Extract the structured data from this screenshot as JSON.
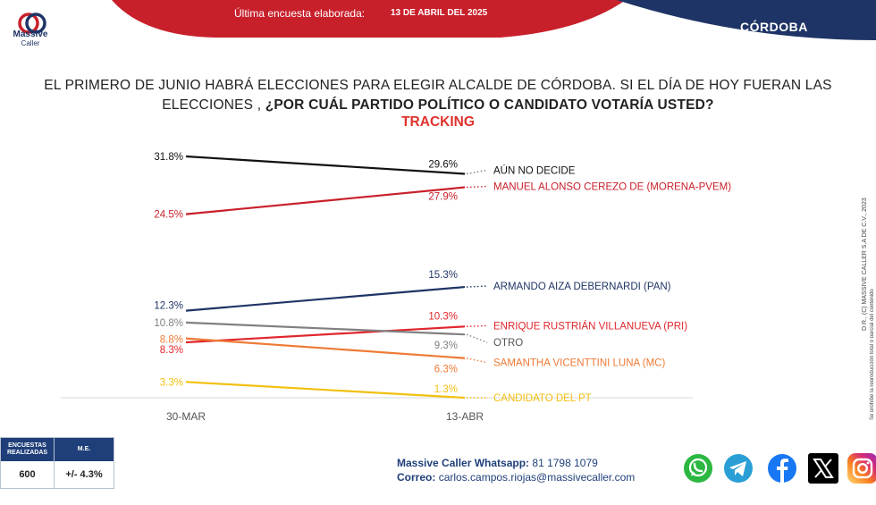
{
  "header": {
    "survey_label": "Última encuesta elaborada:",
    "survey_date": "13 DE ABRIL DEL 2025",
    "region": "CÓRDOBA",
    "logo_line1": "Massive",
    "logo_line2": "Caller",
    "colors": {
      "red": "#d21f2b",
      "navy": "#1f3466"
    }
  },
  "question": {
    "line1": "EL PRIMERO DE JUNIO HABRÁ ELECCIONES PARA ELEGIR ALCALDE DE CÓRDOBA.  SI EL DÍA DE HOY FUERAN LAS",
    "line2_plain": "ELECCIONES , ",
    "line2_bold": "¿POR CUÁL PARTIDO POLÍTICO O CANDIDATO VOTARÍA USTED?",
    "subtitle": "TRACKING"
  },
  "chart_data": {
    "type": "line",
    "x": [
      "30-MAR",
      "13-ABR"
    ],
    "series": [
      {
        "name": "AÚN NO DECIDE",
        "values": [
          31.8,
          29.6
        ],
        "labels": [
          "31.8%",
          "29.6%"
        ],
        "color": "#111111"
      },
      {
        "name": "MANUEL ALONSO CEREZO DE (MORENA-PVEM)",
        "values": [
          24.5,
          27.9
        ],
        "labels": [
          "24.5%",
          "27.9%"
        ],
        "color": "#c8202b"
      },
      {
        "name": "ARMANDO AIZA DEBERNARDI (PAN)",
        "values": [
          12.3,
          15.3
        ],
        "labels": [
          "12.3%",
          "15.3%"
        ],
        "color": "#1f3466"
      },
      {
        "name": "ENRIQUE RUSTRIÁN VILLANUEVA (PRI)",
        "values": [
          8.3,
          10.3
        ],
        "labels": [
          "8.3%",
          "10.3%"
        ],
        "color": "#e0262d"
      },
      {
        "name": "OTRO",
        "values": [
          10.8,
          9.3
        ],
        "labels": [
          "10.8%",
          "9.3%"
        ],
        "color": "#808080"
      },
      {
        "name": "SAMANTHA VICENTTINI LUNA (MC)",
        "values": [
          8.8,
          6.3
        ],
        "labels": [
          "8.8%",
          "6.3%"
        ],
        "color": "#ee7a35"
      },
      {
        "name": "CANDIDATO DEL PT",
        "values": [
          3.3,
          1.3
        ],
        "labels": [
          "3.3%",
          "1.3%"
        ],
        "color": "#f2c011"
      }
    ],
    "legend": "right",
    "grid": false
  },
  "sidebar": {
    "copyright": "D.R., (C) MASSIVE CALLER S.A DE C.V., 2023",
    "notice": "Se prohíbe la reproducción total o parcial del contenido"
  },
  "stats": {
    "header1": "ENCUESTAS REALIZADAS",
    "header2": "M.E.",
    "value1": "600",
    "value2": "+/- 4.3%"
  },
  "contact": {
    "whatsapp_label": "Massive Caller Whatsapp:",
    "whatsapp_number": "81 1798 1079",
    "email_label": "Correo:",
    "email": "carlos.campos.riojas@massivecaller.com"
  },
  "social": [
    {
      "icon": "whatsapp-icon",
      "color": "#2bb741"
    },
    {
      "icon": "telegram-icon",
      "color": "#2a9fd6"
    },
    {
      "icon": "facebook-icon",
      "color": "#1877f2"
    },
    {
      "icon": "x-icon",
      "color": "#000000"
    },
    {
      "icon": "instagram-icon",
      "color": "#d62976"
    }
  ]
}
